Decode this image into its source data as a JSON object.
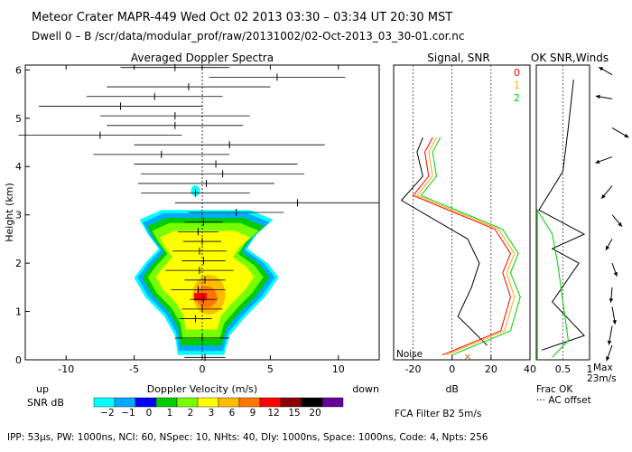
{
  "header": {
    "line1": "Meteor Crater  MAPR-449  Wed Oct 02 2013 03:30 – 03:34 UT 20:30 MST",
    "line2": "Dwell  0 –  B   /scr/data/modular_prof/raw/20131002/02-Oct-2013_03_30-01.cor.nc"
  },
  "chart_data": [
    {
      "type": "heatmap",
      "title": "Averaged Doppler Spectra",
      "xlabel": "Doppler Velocity (m/s)",
      "ylabel": "Height (km)",
      "xlim": [
        -13,
        13
      ],
      "ylim": [
        0,
        6.1
      ],
      "xticks": [
        -10,
        -5,
        0,
        5,
        10
      ],
      "yticks": [
        0,
        1,
        2,
        3,
        4,
        5,
        6
      ],
      "x_up_label": "up",
      "x_down_label": "down",
      "colorbar": {
        "label": "SNR dB",
        "ticks": [
          "−2",
          "−1",
          "0",
          "1",
          "2",
          "3",
          "6",
          "9",
          "12",
          "15",
          "20"
        ],
        "colors": [
          "#00ffff",
          "#00aaff",
          "#0000ff",
          "#00cc00",
          "#77ff00",
          "#ffff00",
          "#ffbb00",
          "#ff7700",
          "#ff0000",
          "#880000",
          "#000000",
          "#660099"
        ]
      },
      "velocity_bars": [
        {
          "h": 0.05,
          "v": 0.2,
          "half": 1.5
        },
        {
          "h": 0.45,
          "v": 0.0,
          "half": 2.0
        },
        {
          "h": 0.85,
          "v": -0.5,
          "half": 1.2
        },
        {
          "h": 1.05,
          "v": 0.0,
          "half": 1.5
        },
        {
          "h": 1.25,
          "v": 0.1,
          "half": 1.0
        },
        {
          "h": 1.45,
          "v": -0.3,
          "half": 2.0
        },
        {
          "h": 1.65,
          "v": 0.2,
          "half": 1.5
        },
        {
          "h": 1.85,
          "v": -0.2,
          "half": 2.5
        },
        {
          "h": 2.05,
          "v": 0.1,
          "half": 1.6
        },
        {
          "h": 2.25,
          "v": -0.2,
          "half": 2.0
        },
        {
          "h": 2.45,
          "v": 0.0,
          "half": 1.4
        },
        {
          "h": 2.65,
          "v": -0.3,
          "half": 1.5
        },
        {
          "h": 2.85,
          "v": 0.1,
          "half": 1.4
        },
        {
          "h": 3.05,
          "v": 2.5,
          "half": 3.5
        },
        {
          "h": 3.25,
          "v": 7.0,
          "half": 9.0
        },
        {
          "h": 3.45,
          "v": -0.5,
          "half": 4.0
        },
        {
          "h": 3.65,
          "v": 0.3,
          "half": 5.0
        },
        {
          "h": 3.85,
          "v": 1.5,
          "half": 6.0
        },
        {
          "h": 4.05,
          "v": 1.0,
          "half": 6.0
        },
        {
          "h": 4.25,
          "v": -3.0,
          "half": 5.0
        },
        {
          "h": 4.45,
          "v": 2.0,
          "half": 7.0
        },
        {
          "h": 4.65,
          "v": -7.5,
          "half": 6.0
        },
        {
          "h": 4.85,
          "v": -2.0,
          "half": 5.0
        },
        {
          "h": 5.05,
          "v": -2.0,
          "half": 5.5
        },
        {
          "h": 5.25,
          "v": -6.0,
          "half": 6.0
        },
        {
          "h": 5.45,
          "v": -3.5,
          "half": 5.0
        },
        {
          "h": 5.65,
          "v": -1.0,
          "half": 6.0
        },
        {
          "h": 5.85,
          "v": 5.5,
          "half": 5.0
        },
        {
          "h": 6.05,
          "v": -2.0,
          "half": 4.0
        }
      ]
    },
    {
      "type": "line",
      "title": "Signal, SNR",
      "xlabel": "dB",
      "xlim": [
        -30,
        40
      ],
      "ylim": [
        0,
        6.1
      ],
      "xticks": [
        -20,
        0,
        20,
        40
      ],
      "noise_label": "Noise",
      "legend": [
        "0",
        "1",
        "2"
      ],
      "series": [
        {
          "name": "signal",
          "color": "#000000",
          "points": [
            [
              18,
              0.3
            ],
            [
              3,
              0.9
            ],
            [
              10,
              1.5
            ],
            [
              14,
              2.0
            ],
            [
              8,
              2.5
            ],
            [
              -26,
              3.3
            ],
            [
              -15,
              3.8
            ],
            [
              -18,
              4.3
            ],
            [
              -15,
              4.6
            ]
          ]
        },
        {
          "name": "0",
          "color": "#ff0000",
          "points": [
            [
              -5,
              0.1
            ],
            [
              25,
              0.6
            ],
            [
              30,
              1.3
            ],
            [
              26,
              1.8
            ],
            [
              30,
              2.2
            ],
            [
              22,
              2.7
            ],
            [
              -20,
              3.4
            ],
            [
              -12,
              3.8
            ],
            [
              -14,
              4.3
            ],
            [
              -10,
              4.6
            ]
          ]
        },
        {
          "name": "1",
          "color": "#ffaa00",
          "points": [
            [
              -3,
              0.1
            ],
            [
              27,
              0.6
            ],
            [
              32,
              1.3
            ],
            [
              28,
              1.8
            ],
            [
              32,
              2.2
            ],
            [
              24,
              2.7
            ],
            [
              -18,
              3.4
            ],
            [
              -10,
              3.8
            ],
            [
              -12,
              4.3
            ],
            [
              -8,
              4.6
            ]
          ]
        },
        {
          "name": "2",
          "color": "#00cc00",
          "points": [
            [
              0,
              0.1
            ],
            [
              30,
              0.6
            ],
            [
              35,
              1.3
            ],
            [
              30,
              1.8
            ],
            [
              34,
              2.2
            ],
            [
              26,
              2.7
            ],
            [
              -16,
              3.4
            ],
            [
              -8,
              3.8
            ],
            [
              -10,
              4.3
            ],
            [
              -6,
              4.6
            ]
          ]
        }
      ]
    },
    {
      "type": "line",
      "title": "OK SNR,Winds",
      "xlabel": "Frac OK",
      "legend_note": "··· AC offset",
      "xlim": [
        0,
        1
      ],
      "ylim": [
        0,
        6.1
      ],
      "xticks": [
        "0.5",
        "1"
      ],
      "series": [
        {
          "name": "frac_ok",
          "color": "#000000",
          "points": [
            [
              0.1,
              0.2
            ],
            [
              0.9,
              0.5
            ],
            [
              0.3,
              1.2
            ],
            [
              0.8,
              2.0
            ],
            [
              0.3,
              2.3
            ],
            [
              0.9,
              2.6
            ],
            [
              0.05,
              3.1
            ],
            [
              0.5,
              3.9
            ],
            [
              0.6,
              4.8
            ],
            [
              0.7,
              5.8
            ]
          ]
        },
        {
          "name": "snr_ok",
          "color": "#00cc00",
          "points": [
            [
              0.02,
              0.0
            ],
            [
              0.02,
              3.1
            ],
            [
              0.3,
              2.6
            ],
            [
              0.4,
              2.0
            ],
            [
              0.5,
              1.2
            ],
            [
              0.6,
              0.4
            ],
            [
              0.3,
              0.05
            ]
          ]
        }
      ],
      "winds_max_label": "Max",
      "winds_max_value": "23m/s",
      "winds": [
        {
          "h": 0.3,
          "dir": 200,
          "speed": 0.6
        },
        {
          "h": 0.7,
          "dir": 190,
          "speed": 0.8
        },
        {
          "h": 1.1,
          "dir": 170,
          "speed": 0.7
        },
        {
          "h": 1.5,
          "dir": 185,
          "speed": 0.5
        },
        {
          "h": 2.0,
          "dir": 160,
          "speed": 0.4
        },
        {
          "h": 2.5,
          "dir": 210,
          "speed": 0.3
        },
        {
          "h": 3.0,
          "dir": 140,
          "speed": 0.5
        },
        {
          "h": 3.6,
          "dir": 220,
          "speed": 0.6
        },
        {
          "h": 4.2,
          "dir": 250,
          "speed": 0.7
        },
        {
          "h": 4.8,
          "dir": 120,
          "speed": 0.8
        },
        {
          "h": 5.4,
          "dir": 280,
          "speed": 0.6
        },
        {
          "h": 5.9,
          "dir": 300,
          "speed": 0.5
        }
      ]
    }
  ],
  "filter_label": "FCA Filter B2  5m/s",
  "footer": "IPP: 53μs,  PW: 1000ns,  NCI: 60,  NSpec: 10,  NHts: 40,  Dly: 1000ns,  Space: 1000ns,  Code: 4,  Npts: 256"
}
